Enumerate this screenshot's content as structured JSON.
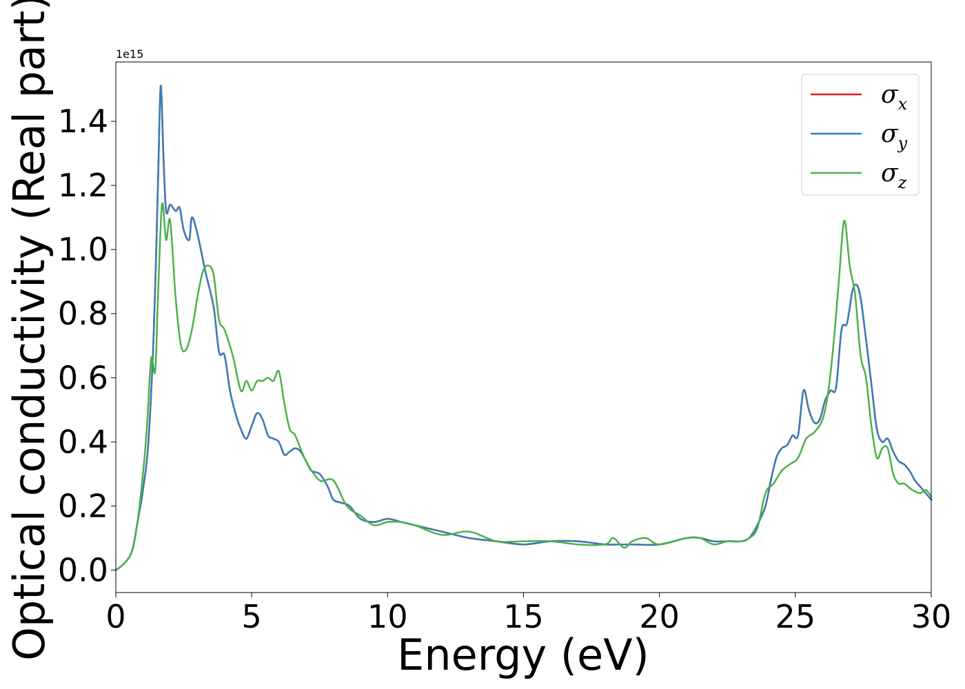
{
  "chart_data": {
    "type": "line",
    "title": "",
    "xlabel": "Energy (eV)",
    "ylabel": "Optical conductivity (Real part)",
    "y_offset_text": "1e15",
    "xlim": [
      0,
      30
    ],
    "ylim": [
      -0.07,
      1.585
    ],
    "xticks": [
      0,
      5,
      10,
      15,
      20,
      25,
      30
    ],
    "xtick_labels": [
      "0",
      "5",
      "10",
      "15",
      "20",
      "25",
      "30"
    ],
    "yticks": [
      0.0,
      0.2,
      0.4,
      0.6,
      0.8,
      1.0,
      1.2,
      1.4
    ],
    "ytick_labels": [
      "0.0",
      "0.2",
      "0.4",
      "0.6",
      "0.8",
      "1.0",
      "1.2",
      "1.4"
    ],
    "grid": false,
    "legend_position": "top-right",
    "series": [
      {
        "name": "σx",
        "symbol": "σ",
        "subscript": "x",
        "color": "#e41a1c",
        "x": [
          0,
          0.3,
          0.6,
          0.8,
          1.0,
          1.2,
          1.4,
          1.55,
          1.65,
          1.75,
          1.85,
          2.0,
          2.2,
          2.35,
          2.5,
          2.7,
          2.8,
          3.0,
          3.3,
          3.6,
          3.8,
          4.0,
          4.2,
          4.4,
          4.6,
          4.8,
          5.0,
          5.2,
          5.4,
          5.6,
          5.8,
          6.0,
          6.2,
          6.4,
          6.6,
          6.8,
          7.0,
          7.2,
          7.5,
          7.8,
          8.0,
          8.3,
          8.6,
          9.0,
          9.5,
          10.0,
          10.5,
          11.0,
          12.0,
          13.0,
          14.0,
          15.0,
          16.0,
          17.0,
          18.0,
          18.5,
          19.0,
          20.0,
          21.0,
          21.5,
          22.0,
          22.5,
          23.0,
          23.3,
          23.6,
          23.9,
          24.1,
          24.3,
          24.5,
          24.7,
          24.9,
          25.1,
          25.3,
          25.5,
          25.7,
          25.9,
          26.1,
          26.3,
          26.5,
          26.7,
          26.9,
          27.1,
          27.25,
          27.4,
          27.6,
          27.8,
          28.0,
          28.2,
          28.4,
          28.6,
          28.8,
          29.0,
          29.2,
          29.4,
          29.6,
          29.8,
          30.0
        ],
        "values": [
          0.0,
          0.02,
          0.06,
          0.15,
          0.25,
          0.4,
          0.75,
          1.2,
          1.51,
          1.3,
          1.12,
          1.14,
          1.12,
          1.13,
          1.06,
          1.03,
          1.1,
          1.05,
          0.93,
          0.82,
          0.68,
          0.67,
          0.56,
          0.49,
          0.44,
          0.41,
          0.45,
          0.49,
          0.47,
          0.42,
          0.41,
          0.4,
          0.36,
          0.37,
          0.38,
          0.37,
          0.34,
          0.31,
          0.3,
          0.26,
          0.22,
          0.21,
          0.2,
          0.16,
          0.15,
          0.16,
          0.15,
          0.14,
          0.12,
          0.1,
          0.09,
          0.08,
          0.09,
          0.09,
          0.08,
          0.08,
          0.08,
          0.08,
          0.1,
          0.1,
          0.09,
          0.09,
          0.09,
          0.1,
          0.14,
          0.2,
          0.28,
          0.35,
          0.38,
          0.39,
          0.42,
          0.42,
          0.56,
          0.5,
          0.46,
          0.47,
          0.53,
          0.56,
          0.57,
          0.75,
          0.77,
          0.87,
          0.89,
          0.85,
          0.72,
          0.58,
          0.44,
          0.4,
          0.41,
          0.37,
          0.34,
          0.33,
          0.31,
          0.28,
          0.26,
          0.24,
          0.22
        ]
      },
      {
        "name": "σy",
        "symbol": "σ",
        "subscript": "y",
        "color": "#377eb8",
        "x": [
          0,
          0.3,
          0.6,
          0.8,
          1.0,
          1.2,
          1.4,
          1.55,
          1.65,
          1.75,
          1.85,
          2.0,
          2.2,
          2.35,
          2.5,
          2.7,
          2.8,
          3.0,
          3.3,
          3.6,
          3.8,
          4.0,
          4.2,
          4.4,
          4.6,
          4.8,
          5.0,
          5.2,
          5.4,
          5.6,
          5.8,
          6.0,
          6.2,
          6.4,
          6.6,
          6.8,
          7.0,
          7.2,
          7.5,
          7.8,
          8.0,
          8.3,
          8.6,
          9.0,
          9.5,
          10.0,
          10.5,
          11.0,
          12.0,
          13.0,
          14.0,
          15.0,
          16.0,
          17.0,
          18.0,
          18.5,
          19.0,
          20.0,
          21.0,
          21.5,
          22.0,
          22.5,
          23.0,
          23.3,
          23.6,
          23.9,
          24.1,
          24.3,
          24.5,
          24.7,
          24.9,
          25.1,
          25.3,
          25.5,
          25.7,
          25.9,
          26.1,
          26.3,
          26.5,
          26.7,
          26.9,
          27.1,
          27.25,
          27.4,
          27.6,
          27.8,
          28.0,
          28.2,
          28.4,
          28.6,
          28.8,
          29.0,
          29.2,
          29.4,
          29.6,
          29.8,
          30.0
        ],
        "values": [
          0.0,
          0.02,
          0.06,
          0.15,
          0.25,
          0.4,
          0.75,
          1.2,
          1.51,
          1.3,
          1.12,
          1.14,
          1.12,
          1.13,
          1.06,
          1.03,
          1.1,
          1.05,
          0.93,
          0.82,
          0.68,
          0.67,
          0.56,
          0.49,
          0.44,
          0.41,
          0.45,
          0.49,
          0.47,
          0.42,
          0.41,
          0.4,
          0.36,
          0.37,
          0.38,
          0.37,
          0.34,
          0.31,
          0.3,
          0.26,
          0.22,
          0.21,
          0.2,
          0.16,
          0.15,
          0.16,
          0.15,
          0.14,
          0.12,
          0.1,
          0.09,
          0.08,
          0.09,
          0.09,
          0.08,
          0.08,
          0.08,
          0.08,
          0.1,
          0.1,
          0.09,
          0.09,
          0.09,
          0.1,
          0.14,
          0.2,
          0.28,
          0.35,
          0.38,
          0.39,
          0.42,
          0.42,
          0.56,
          0.5,
          0.46,
          0.47,
          0.53,
          0.56,
          0.57,
          0.75,
          0.77,
          0.87,
          0.89,
          0.85,
          0.72,
          0.58,
          0.44,
          0.4,
          0.41,
          0.37,
          0.34,
          0.33,
          0.31,
          0.28,
          0.26,
          0.24,
          0.22
        ]
      },
      {
        "name": "σz",
        "symbol": "σ",
        "subscript": "z",
        "color": "#4daf4a",
        "x": [
          0,
          0.3,
          0.6,
          0.8,
          1.0,
          1.15,
          1.3,
          1.45,
          1.55,
          1.7,
          1.85,
          2.0,
          2.2,
          2.4,
          2.6,
          2.8,
          3.0,
          3.2,
          3.4,
          3.6,
          3.8,
          4.0,
          4.3,
          4.6,
          4.8,
          5.0,
          5.2,
          5.4,
          5.6,
          5.8,
          6.0,
          6.2,
          6.4,
          6.6,
          7.0,
          7.5,
          8.0,
          8.5,
          9.0,
          9.5,
          10.0,
          10.5,
          11.0,
          12.0,
          13.0,
          14.0,
          15.0,
          16.0,
          17.0,
          18.0,
          18.3,
          18.7,
          19.0,
          19.5,
          20.0,
          21.0,
          21.5,
          22.0,
          22.5,
          23.0,
          23.3,
          23.6,
          23.9,
          24.2,
          24.5,
          24.8,
          25.1,
          25.4,
          25.7,
          26.0,
          26.2,
          26.4,
          26.6,
          26.8,
          27.0,
          27.2,
          27.4,
          27.6,
          27.8,
          28.0,
          28.2,
          28.4,
          28.6,
          28.8,
          29.0,
          29.3,
          29.6,
          29.8,
          30.0
        ],
        "values": [
          0.0,
          0.02,
          0.06,
          0.15,
          0.3,
          0.45,
          0.66,
          0.62,
          0.85,
          1.14,
          1.03,
          1.09,
          0.85,
          0.7,
          0.69,
          0.75,
          0.85,
          0.93,
          0.95,
          0.92,
          0.78,
          0.75,
          0.67,
          0.56,
          0.59,
          0.56,
          0.59,
          0.59,
          0.6,
          0.59,
          0.62,
          0.52,
          0.44,
          0.42,
          0.34,
          0.28,
          0.28,
          0.2,
          0.17,
          0.14,
          0.15,
          0.15,
          0.14,
          0.11,
          0.12,
          0.09,
          0.09,
          0.09,
          0.08,
          0.08,
          0.1,
          0.07,
          0.09,
          0.1,
          0.08,
          0.1,
          0.1,
          0.08,
          0.09,
          0.09,
          0.1,
          0.13,
          0.24,
          0.27,
          0.31,
          0.33,
          0.35,
          0.41,
          0.43,
          0.47,
          0.55,
          0.7,
          0.9,
          1.09,
          0.95,
          0.86,
          0.67,
          0.6,
          0.45,
          0.35,
          0.38,
          0.38,
          0.3,
          0.27,
          0.27,
          0.25,
          0.24,
          0.25,
          0.23
        ]
      }
    ]
  }
}
